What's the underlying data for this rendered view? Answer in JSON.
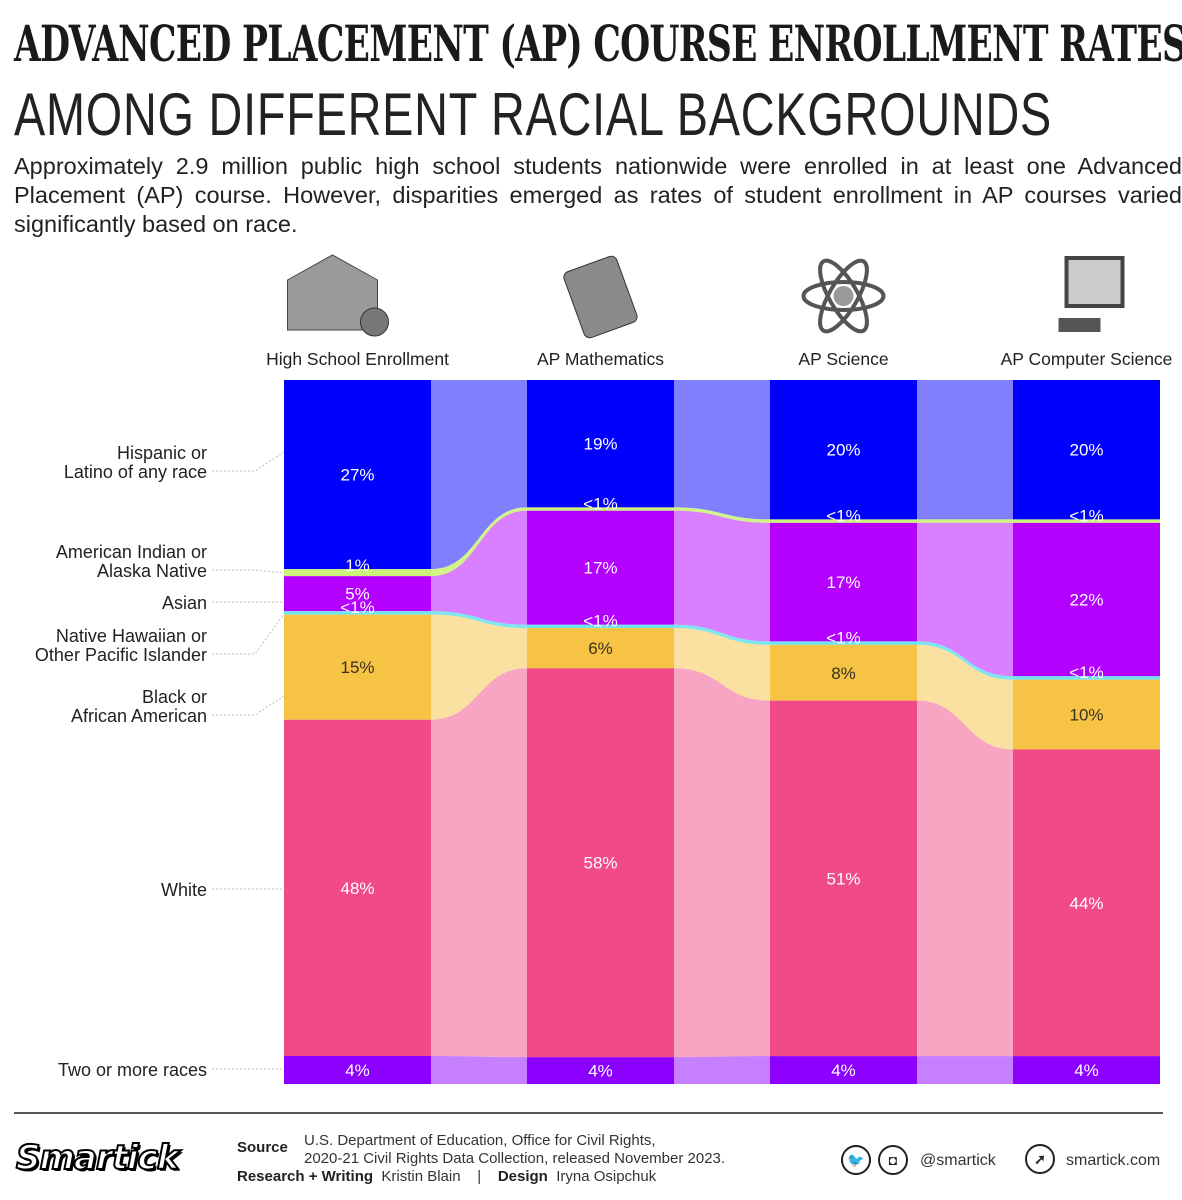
{
  "header": {
    "title": "ADVANCED PLACEMENT (AP) COURSE ENROLLMENT RATES",
    "subtitle": "AMONG DIFFERENT RACIAL BACKGROUNDS",
    "intro": "Approximately 2.9 million public high school students nationwide were enrolled in at least one Advanced Placement (AP) course. However, disparities emerged as rates of student enrollment in AP courses varied significantly based on race."
  },
  "chart_data": {
    "type": "stacked-bar-alluvial",
    "categories": [
      "High School Enrollment",
      "AP Mathematics",
      "AP Science",
      "AP Computer Science"
    ],
    "category_icons": [
      "school-building-icon",
      "math-calculator-icon",
      "atom-icon",
      "computer-icon"
    ],
    "series": [
      {
        "name": "Hispanic or\nLatino of any race",
        "color": "#0000ff",
        "values": [
          27,
          19,
          20,
          20
        ],
        "labels": [
          "27%",
          "19%",
          "20%",
          "20%"
        ]
      },
      {
        "name": "American Indian or\nAlaska Native",
        "color": "#ccf27a",
        "values": [
          1,
          0.5,
          0.5,
          0.5
        ],
        "labels": [
          "1%",
          "<1%",
          "<1%",
          "<1%"
        ]
      },
      {
        "name": "Asian",
        "color": "#b300ff",
        "values": [
          5,
          17,
          17,
          22
        ],
        "labels": [
          "5%",
          "17%",
          "17%",
          "22%"
        ]
      },
      {
        "name": "Native Hawaiian or\nOther Pacific Islander",
        "color": "#6fe3ee",
        "values": [
          0.5,
          0.5,
          0.5,
          0.5
        ],
        "labels": [
          "<1%",
          "<1%",
          "<1%",
          "<1%"
        ]
      },
      {
        "name": "Black or\nAfrican American",
        "color": "#f6c344",
        "values": [
          15,
          6,
          8,
          10
        ],
        "labels": [
          "15%",
          "6%",
          "8%",
          "10%"
        ]
      },
      {
        "name": "White",
        "color": "#f04b87",
        "values": [
          48,
          58,
          51,
          44
        ],
        "labels": [
          "48%",
          "58%",
          "51%",
          "44%"
        ]
      },
      {
        "name": "Two or more races",
        "color": "#8c00ff",
        "values": [
          4,
          4,
          4,
          4
        ],
        "labels": [
          "4%",
          "4%",
          "4%",
          "4%"
        ]
      }
    ]
  },
  "footer": {
    "logo": "Smartick",
    "source_label": "Source",
    "source_line1": "U.S. Department of Education, Office for Civil Rights,",
    "source_line2": "2020-21 Civil Rights Data Collection, released November 2023.",
    "research_label": "Research + Writing",
    "research_name": "Kristin Blain",
    "separator": "|",
    "design_label": "Design",
    "design_name": "Iryna Osipchuk",
    "social_handle": "@smartick",
    "website": "smartick.com"
  }
}
